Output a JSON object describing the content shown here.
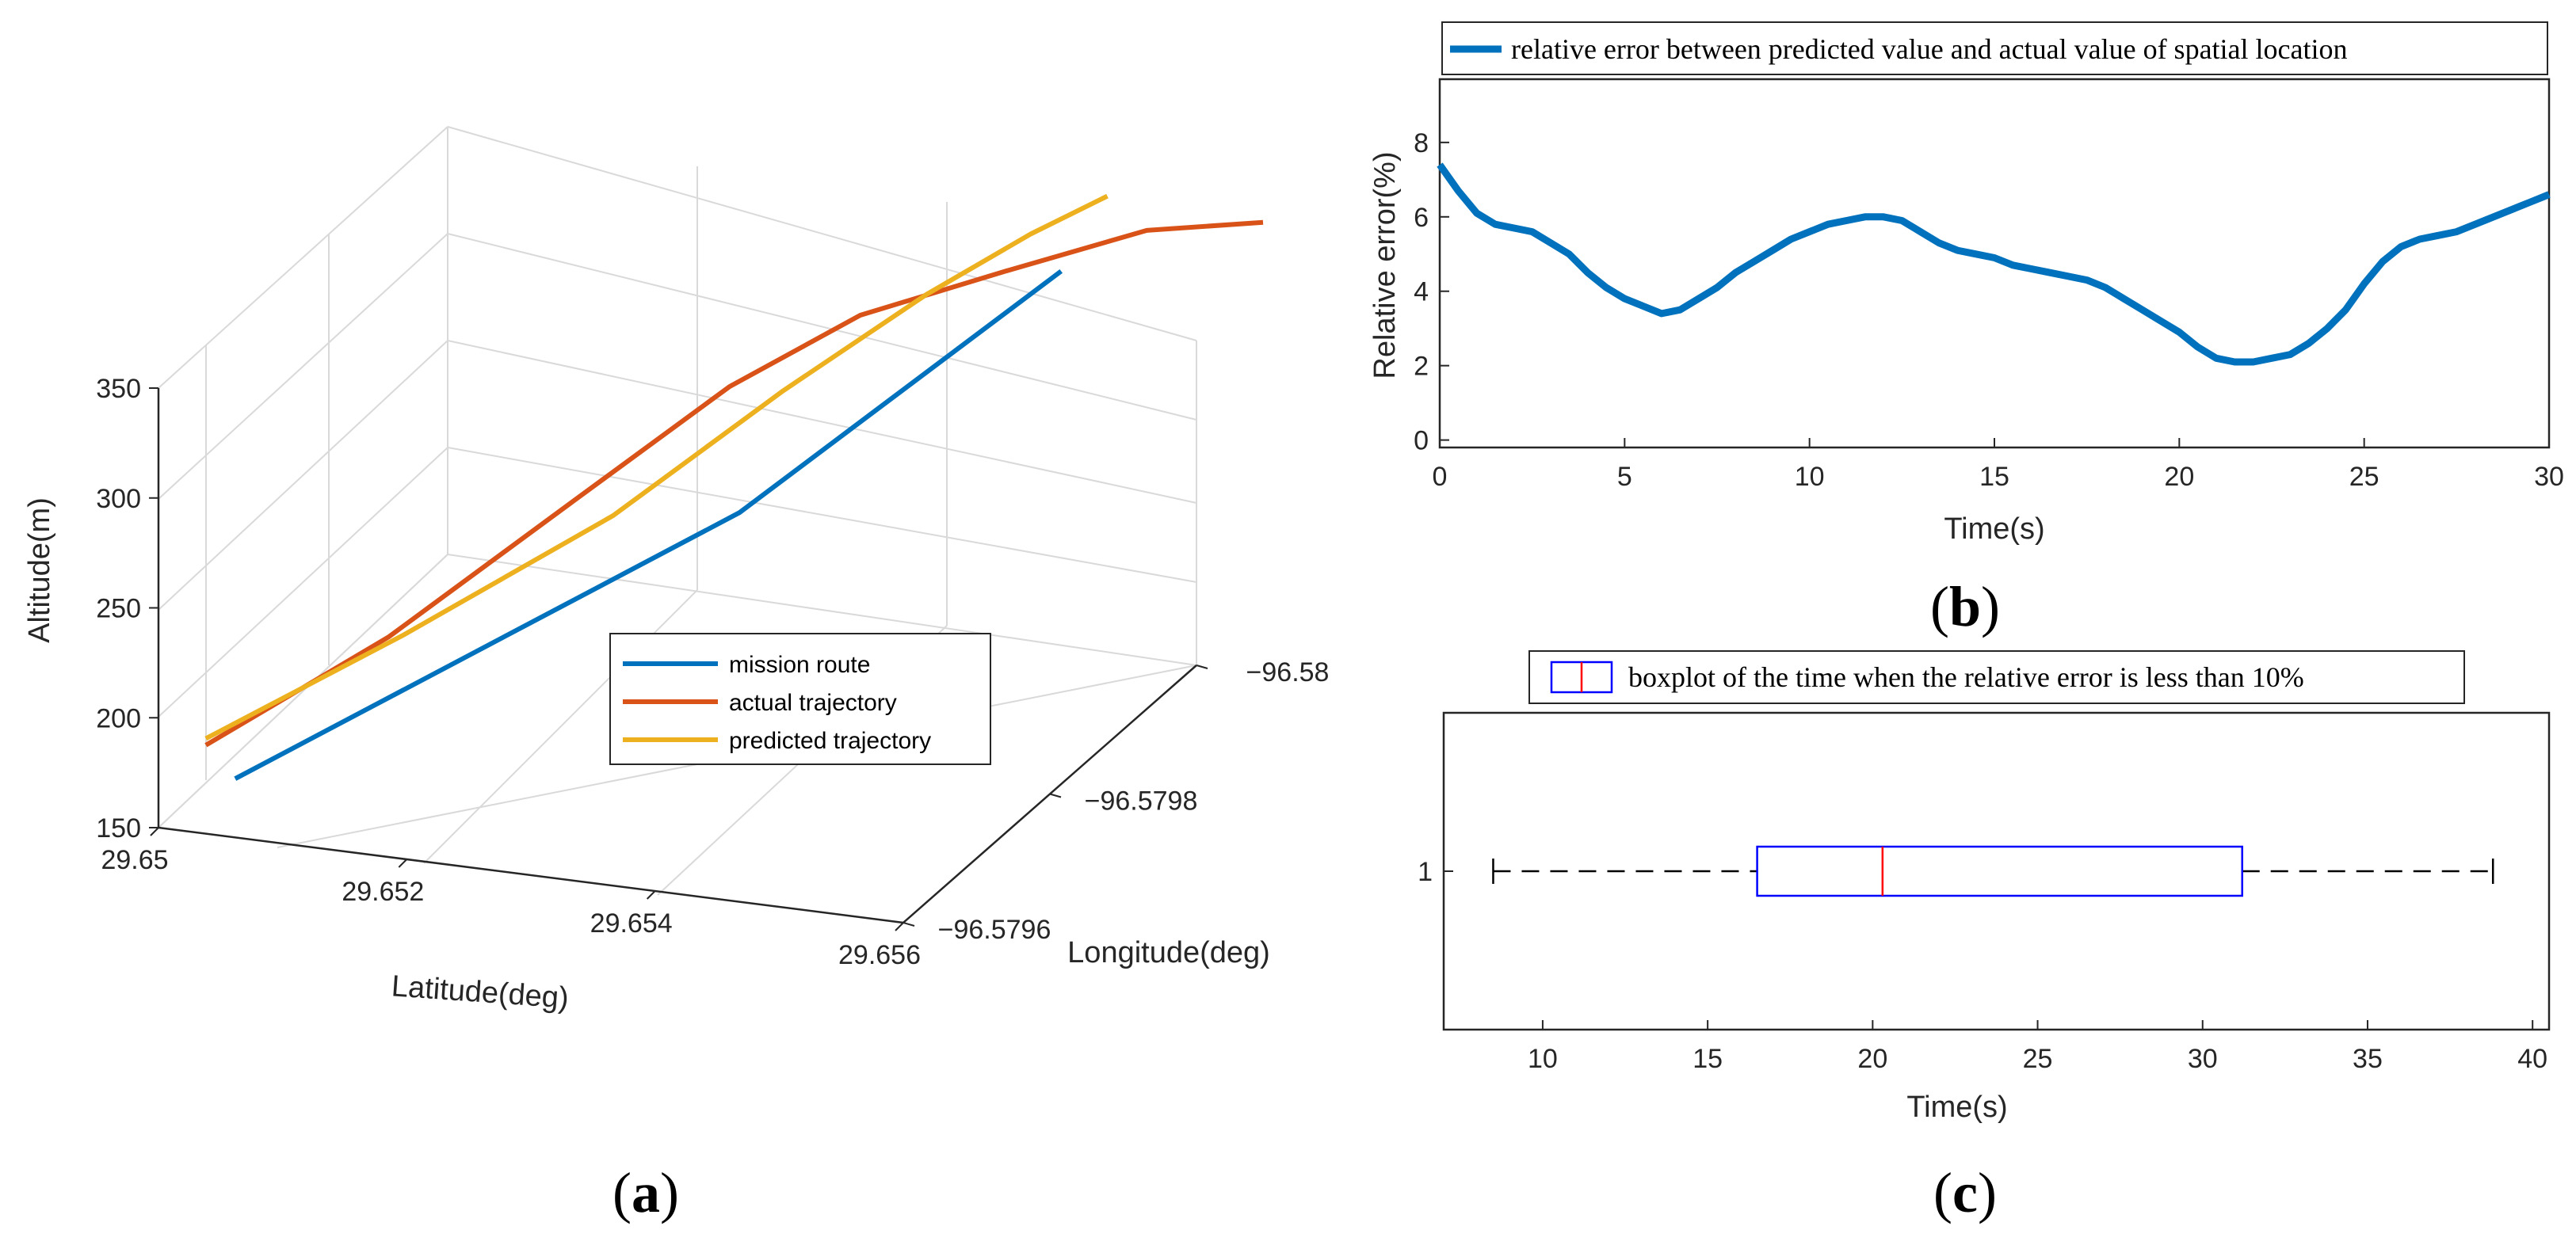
{
  "chart_data": [
    {
      "panel": "a",
      "type": "line",
      "projection": "3d",
      "xlabel": "Latitude(deg)",
      "ylabel": "Longitude(deg)",
      "zlabel": "Altitude(m)",
      "x_ticks": [
        "29.65",
        "29.652",
        "29.654",
        "29.656"
      ],
      "y_ticks": [
        "−96.5796",
        "−96.5798",
        "−96.58"
      ],
      "z_ticks": [
        "150",
        "200",
        "250",
        "300",
        "350"
      ],
      "xlim": [
        29.65,
        29.656
      ],
      "ylim": [
        -96.5796,
        -96.58
      ],
      "zlim": [
        150,
        350
      ],
      "legend_position": "lower-right",
      "series": [
        {
          "name": "mission route",
          "color": "#0072BD",
          "points": [
            [
              29.6505,
              -96.57962,
              170
            ],
            [
              29.6535,
              -96.5798,
              260
            ],
            [
              29.6555,
              -96.5799,
              355
            ]
          ]
        },
        {
          "name": "actual trajectory",
          "color": "#D95319",
          "points": [
            [
              29.6505,
              -96.57958,
              197
            ],
            [
              29.6515,
              -96.57966,
              230
            ],
            [
              29.6525,
              -96.57974,
              275
            ],
            [
              29.6533,
              -96.57982,
              310
            ],
            [
              29.654,
              -96.57988,
              330
            ],
            [
              29.6548,
              -96.57994,
              338
            ],
            [
              29.6556,
              -96.58,
              345
            ],
            [
              29.6563,
              -96.58004,
              342
            ]
          ]
        },
        {
          "name": "predicted trajectory",
          "color": "#EDB120",
          "points": [
            [
              29.6505,
              -96.57958,
              200
            ],
            [
              29.6515,
              -96.57968,
              225
            ],
            [
              29.6526,
              -96.57978,
              258
            ],
            [
              29.6535,
              -96.57986,
              298
            ],
            [
              29.6543,
              -96.57992,
              330
            ],
            [
              29.6549,
              -96.57996,
              350
            ],
            [
              29.6554,
              -96.57998,
              365
            ]
          ]
        }
      ]
    },
    {
      "panel": "b",
      "type": "line",
      "title": "",
      "xlabel": "Time(s)",
      "ylabel": "Relative error(%)",
      "xlim": [
        0,
        30
      ],
      "ylim": [
        -0.2,
        9.7
      ],
      "x_ticks": [
        0,
        5,
        10,
        15,
        20,
        25,
        30
      ],
      "y_ticks": [
        0,
        2,
        4,
        6,
        8
      ],
      "legend_position": "top",
      "series": [
        {
          "name": "relative error between predicted value and actual value of spatial location",
          "color": "#0072BD",
          "x": [
            0,
            0.5,
            1,
            1.5,
            2,
            2.5,
            3,
            3.5,
            4,
            4.5,
            5,
            5.5,
            6,
            6.5,
            7,
            7.5,
            8,
            8.5,
            9,
            9.5,
            10,
            10.5,
            11,
            11.5,
            12,
            12.5,
            13,
            13.5,
            14,
            14.5,
            15,
            15.5,
            16,
            16.5,
            17,
            17.5,
            18,
            18.5,
            19,
            19.5,
            20,
            20.5,
            21,
            21.5,
            22,
            22.5,
            23,
            23.5,
            24,
            24.5,
            25,
            25.5,
            26,
            26.5,
            27,
            27.5,
            28,
            28.5,
            29,
            29.5,
            30
          ],
          "y": [
            7.4,
            6.7,
            6.1,
            5.8,
            5.7,
            5.6,
            5.3,
            5.0,
            4.5,
            4.1,
            3.8,
            3.6,
            3.4,
            3.5,
            3.8,
            4.1,
            4.5,
            4.8,
            5.1,
            5.4,
            5.6,
            5.8,
            5.9,
            6.0,
            6.0,
            5.9,
            5.6,
            5.3,
            5.1,
            5.0,
            4.9,
            4.7,
            4.6,
            4.5,
            4.4,
            4.3,
            4.1,
            3.8,
            3.5,
            3.2,
            2.9,
            2.5,
            2.2,
            2.1,
            2.1,
            2.2,
            2.3,
            2.6,
            3.0,
            3.5,
            4.2,
            4.8,
            5.2,
            5.4,
            5.5,
            5.6,
            5.8,
            6.0,
            6.2,
            6.4,
            6.6
          ]
        }
      ]
    },
    {
      "panel": "c",
      "type": "boxplot",
      "xlabel": "Time(s)",
      "xlim": [
        7,
        40.5
      ],
      "x_ticks": [
        10,
        15,
        20,
        25,
        30,
        35,
        40
      ],
      "y_ticks": [
        "1"
      ],
      "legend_position": "top",
      "legend_label": "boxplot of the time when the relative error is less than 10%",
      "box": {
        "category": "1",
        "min": 8.5,
        "q1": 16.5,
        "median": 20.3,
        "q3": 31.2,
        "max": 38.8,
        "box_color": "#0000FF",
        "median_color": "#FF0000",
        "whisker_color": "#000000"
      }
    }
  ],
  "panel_labels": {
    "a": "a",
    "b": "b",
    "c": "c"
  }
}
